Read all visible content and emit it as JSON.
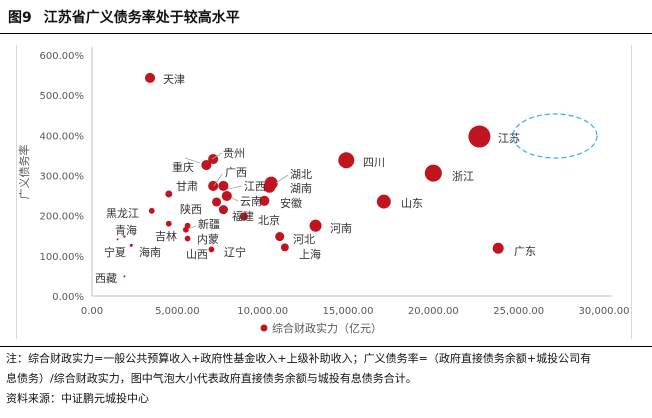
{
  "header": {
    "figure_no": "图9",
    "title": "江苏省广义债务率处于较高水平"
  },
  "chart_data": {
    "type": "scatter",
    "subtype": "bubble",
    "title": "江苏省广义债务率处于较高水平",
    "xlabel": "综合财政实力（亿元）",
    "ylabel": "广义债务率",
    "xlim": [
      0,
      30000
    ],
    "ylim": [
      0,
      600
    ],
    "x_ticks": [
      "0.00",
      "5,000.00",
      "10,000.00",
      "15,000.00",
      "20,000.00",
      "25,000.00",
      "30,000.00"
    ],
    "y_ticks": [
      "0.00%",
      "100.00%",
      "200.00%",
      "300.00%",
      "400.00%",
      "500.00%",
      "600.00%"
    ],
    "legend": {
      "entries": [
        "综合财政实力（亿元）"
      ],
      "placement": "bottom"
    },
    "grid": false,
    "bubble_color": "#c0141f",
    "highlight_color": "#3bb8ea",
    "highlight": "江苏",
    "points": [
      {
        "name": "天津",
        "x": 3400,
        "y": 543,
        "size": 21
      },
      {
        "name": "江苏",
        "x": 22700,
        "y": 397,
        "size": 100
      },
      {
        "name": "四川",
        "x": 14900,
        "y": 338,
        "size": 53
      },
      {
        "name": "浙江",
        "x": 20000,
        "y": 306,
        "size": 60
      },
      {
        "name": "山东",
        "x": 17100,
        "y": 235,
        "size": 40
      },
      {
        "name": "河南",
        "x": 13100,
        "y": 175,
        "size": 30
      },
      {
        "name": "广东",
        "x": 23800,
        "y": 119,
        "size": 25
      },
      {
        "name": "上海",
        "x": 11300,
        "y": 121,
        "size": 13
      },
      {
        "name": "河北",
        "x": 11000,
        "y": 148,
        "size": 17
      },
      {
        "name": "贵州",
        "x": 7100,
        "y": 341,
        "size": 21
      },
      {
        "name": "重庆",
        "x": 6700,
        "y": 326,
        "size": 21
      },
      {
        "name": "广西",
        "x": 7100,
        "y": 274,
        "size": 21
      },
      {
        "name": "江西",
        "x": 7700,
        "y": 274,
        "size": 21
      },
      {
        "name": "湖北",
        "x": 10500,
        "y": 281,
        "size": 35
      },
      {
        "name": "湖南",
        "x": 10400,
        "y": 272,
        "size": 30
      },
      {
        "name": "云南",
        "x": 7900,
        "y": 249,
        "size": 21
      },
      {
        "name": "陕西",
        "x": 7300,
        "y": 234,
        "size": 17
      },
      {
        "name": "甘肃",
        "x": 4500,
        "y": 254,
        "size": 10
      },
      {
        "name": "安徽",
        "x": 10100,
        "y": 237,
        "size": 21
      },
      {
        "name": "福建",
        "x": 7700,
        "y": 215,
        "size": 17
      },
      {
        "name": "北京",
        "x": 8900,
        "y": 198,
        "size": 13
      },
      {
        "name": "黑龙江",
        "x": 3500,
        "y": 212,
        "size": 7
      },
      {
        "name": "吉林",
        "x": 4500,
        "y": 180,
        "size": 7
      },
      {
        "name": "新疆",
        "x": 5600,
        "y": 175,
        "size": 7
      },
      {
        "name": "内蒙",
        "x": 5500,
        "y": 165,
        "size": 7
      },
      {
        "name": "山西",
        "x": 5600,
        "y": 143,
        "size": 7
      },
      {
        "name": "辽宁",
        "x": 7000,
        "y": 116,
        "size": 7
      },
      {
        "name": "青海",
        "x": 1900,
        "y": 148,
        "size": 1.2
      },
      {
        "name": "宁夏",
        "x": 1500,
        "y": 141,
        "size": 0.8
      },
      {
        "name": "海南",
        "x": 2300,
        "y": 126,
        "size": 1.9
      },
      {
        "name": "西藏",
        "x": 1900,
        "y": 49,
        "size": 0.3
      }
    ]
  },
  "footer": {
    "note_line1": "注：综合财政实力=一般公共预算收入+政府性基金收入+上级补助收入；广义债务率=（政府直接债务余额+城投公司有",
    "note_line2": "息债务）/综合财政实力，图中气泡大小代表政府直接债务余额与城投有息债务合计。",
    "source": "资料来源：中证鹏元城投中心"
  }
}
